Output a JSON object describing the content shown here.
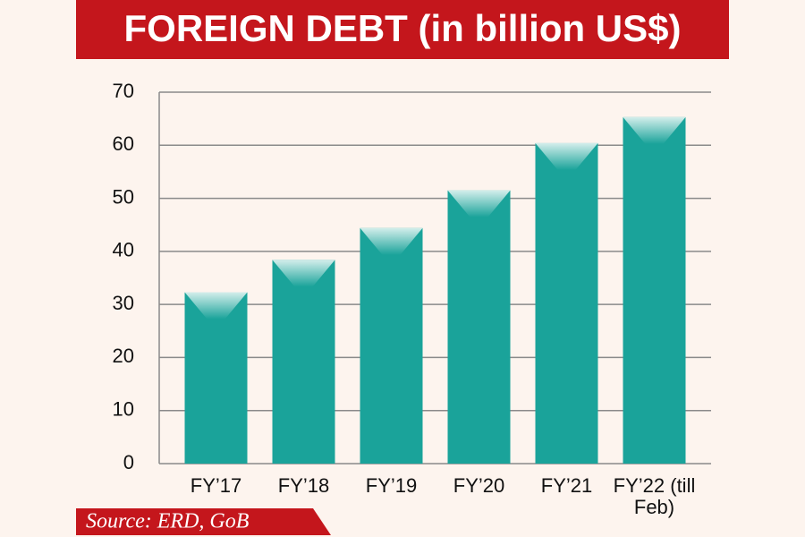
{
  "chart_data": {
    "type": "bar",
    "title": "FOREIGN DEBT (in billion US$)",
    "categories": [
      "FY’17",
      "FY’18",
      "FY’19",
      "FY’20",
      "FY’21",
      "FY’22 (till Feb)"
    ],
    "values": [
      32.3,
      38.4,
      44.4,
      51.5,
      60.4,
      65.3
    ],
    "color": "#1aa39a",
    "ylim": [
      0,
      70
    ],
    "yticks": [
      0,
      10,
      20,
      30,
      40,
      50,
      60,
      70
    ],
    "grid": true,
    "source": "Source: ERD, GoB"
  }
}
